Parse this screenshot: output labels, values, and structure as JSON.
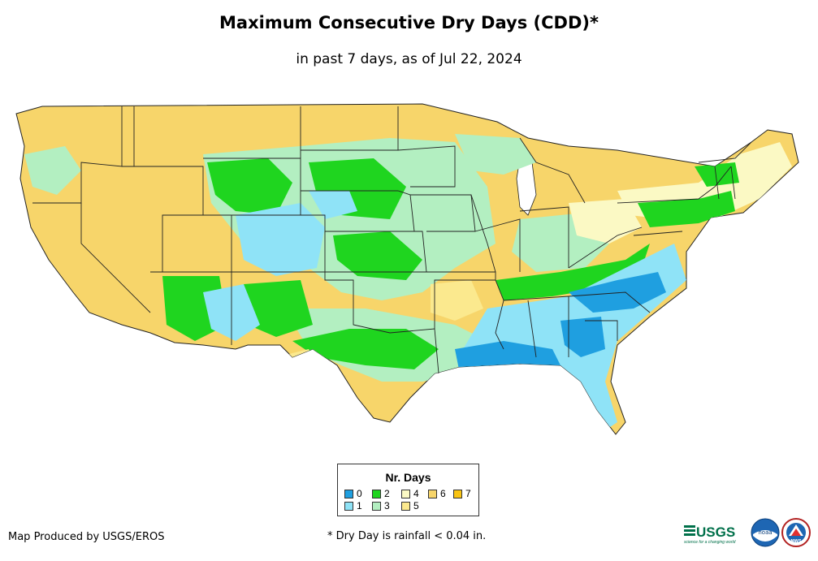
{
  "title": "Maximum Consecutive Dry Days (CDD)*",
  "subtitle": "in past 7 days, as of Jul 22, 2024",
  "legend": {
    "title": "Nr. Days",
    "items": [
      {
        "label": "0",
        "color": "#1f9fe0"
      },
      {
        "label": "1",
        "color": "#8fe3f7"
      },
      {
        "label": "2",
        "color": "#1fd51f"
      },
      {
        "label": "3",
        "color": "#b3efc1"
      },
      {
        "label": "4",
        "color": "#fbf9c4"
      },
      {
        "label": "5",
        "color": "#fbe98e"
      },
      {
        "label": "6",
        "color": "#f7d56a"
      },
      {
        "label": "7",
        "color": "#f9c413"
      }
    ]
  },
  "credit": "Map Produced by USGS/EROS",
  "footnote": "* Dry Day is rainfall < 0.04 in.",
  "logos": {
    "usgs": {
      "text": "USGS",
      "tagline": "science for a changing world",
      "color": "#00704a"
    },
    "noaa": {
      "text": "noaa"
    },
    "nws": {
      "text": "NWS"
    }
  }
}
